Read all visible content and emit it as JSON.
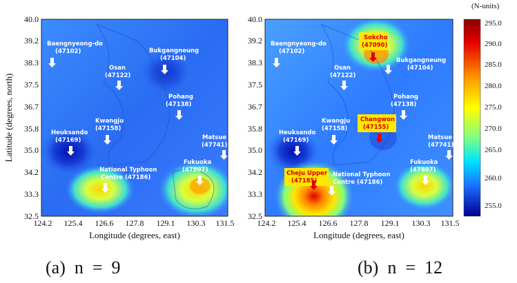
{
  "axes": {
    "xlabel": "Longitude (degrees, east)",
    "ylabel": "Latitude (degrees, north)",
    "xticks": [
      "124.2",
      "125.4",
      "126.6",
      "127.8",
      "129.1",
      "130.3",
      "131.5"
    ],
    "yticks": [
      "40.0",
      "39.2",
      "38.3",
      "37.5",
      "36.7",
      "35.8",
      "35.0",
      "34.2",
      "33.3",
      "32.5"
    ]
  },
  "panels": [
    {
      "caption": "(a)  n  =  9",
      "stations": [
        {
          "name": "Baengnyeong-do",
          "id": "(47102)",
          "highlight": false
        },
        {
          "name": "Osan",
          "id": "(47122)",
          "highlight": false
        },
        {
          "name": "Bukgangneung",
          "id": "(47104)",
          "highlight": false
        },
        {
          "name": "Pohang",
          "id": "(47138)",
          "highlight": false
        },
        {
          "name": "Kwangju",
          "id": "(47158)",
          "highlight": false
        },
        {
          "name": "Heuksando",
          "id": "(47169)",
          "highlight": false
        },
        {
          "name": "Matsue",
          "id": "(47741)",
          "highlight": false
        },
        {
          "name": "Fukuoka",
          "id": "(47807)",
          "highlight": false
        },
        {
          "name": "National Typhoon",
          "id": "Centre (47186)",
          "highlight": false
        }
      ]
    },
    {
      "caption": "(b)  n  =  12",
      "stations": [
        {
          "name": "Baengnyeong-do",
          "id": "(47102)",
          "highlight": false
        },
        {
          "name": "Sokcho",
          "id": "(47090)",
          "highlight": true
        },
        {
          "name": "Osan",
          "id": "(47122)",
          "highlight": false
        },
        {
          "name": "Bukgangneung",
          "id": "(47104)",
          "highlight": false
        },
        {
          "name": "Pohang",
          "id": "(47138)",
          "highlight": false
        },
        {
          "name": "Kwangju",
          "id": "(47158)",
          "highlight": false
        },
        {
          "name": "Changwon",
          "id": "(47155)",
          "highlight": true
        },
        {
          "name": "Heuksando",
          "id": "(47169)",
          "highlight": false
        },
        {
          "name": "Matsue",
          "id": "(47741)",
          "highlight": false
        },
        {
          "name": "Fukuoka",
          "id": "(47807)",
          "highlight": false
        },
        {
          "name": "Cheju Upper",
          "id": "(47185)",
          "highlight": true
        },
        {
          "name": "National Typhoon",
          "id": "Centre (47186)",
          "highlight": false
        }
      ]
    }
  ],
  "colorbar": {
    "unit": "(N-units)",
    "ticks": [
      "295.0",
      "290.0",
      "285.0",
      "280.0",
      "275.0",
      "270.0",
      "265.0",
      "260.0",
      "255.0"
    ]
  },
  "colors": {
    "low": "#00008f",
    "mid": "#2f7fff",
    "high": "#e60000"
  }
}
